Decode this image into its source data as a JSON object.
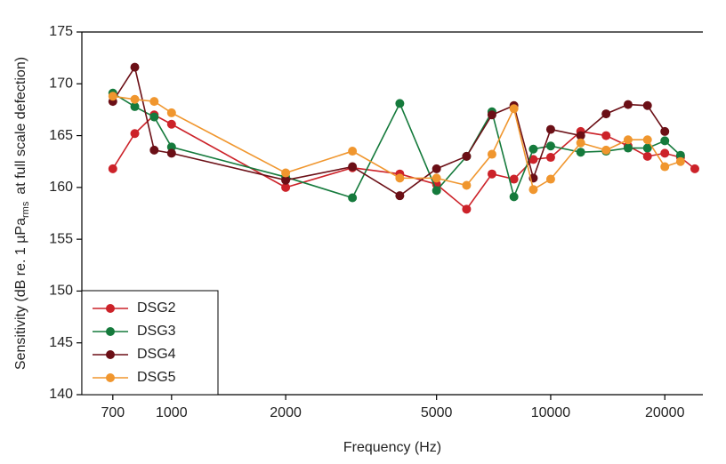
{
  "chart_data": {
    "type": "line",
    "x_label": "Frequency (Hz)",
    "y_label": {
      "text": "Sensitivity (dB re. 1 µPa",
      "subscript": "rms",
      "suffix": "at full scale defection)"
    },
    "x": [
      700,
      800,
      900,
      1000,
      2000,
      3000,
      4000,
      5000,
      6000,
      7000,
      8000,
      9000,
      10000,
      12000,
      14000,
      16000,
      18000,
      20000,
      22000,
      24000
    ],
    "series": [
      {
        "name": "DSG2",
        "color": "#cc2229",
        "values": [
          161.8,
          165.2,
          167.0,
          166.1,
          160.0,
          161.9,
          161.3,
          160.3,
          157.9,
          161.3,
          160.8,
          162.7,
          162.9,
          165.4,
          165.0,
          164.0,
          163.0,
          163.3,
          162.9,
          161.8
        ]
      },
      {
        "name": "DSG3",
        "color": "#157a3c",
        "values": [
          169.1,
          167.8,
          166.8,
          163.9,
          161.0,
          159.0,
          168.1,
          159.7,
          163.0,
          167.3,
          159.1,
          163.7,
          164.0,
          163.4,
          163.5,
          163.8,
          163.8,
          164.5,
          163.1,
          null
        ]
      },
      {
        "name": "DSG4",
        "color": "#6b0f16",
        "values": [
          168.3,
          171.6,
          163.6,
          163.3,
          160.7,
          162.0,
          159.2,
          161.8,
          163.0,
          167.0,
          167.9,
          160.9,
          165.6,
          165.0,
          167.1,
          168.0,
          167.9,
          165.4,
          null,
          null
        ]
      },
      {
        "name": "DSG5",
        "color": "#f0962e",
        "values": [
          168.8,
          168.5,
          168.3,
          167.2,
          161.4,
          163.5,
          160.9,
          160.9,
          160.2,
          163.2,
          167.6,
          159.8,
          160.8,
          164.3,
          163.6,
          164.6,
          164.6,
          162.0,
          162.5,
          null
        ]
      }
    ],
    "xlim": [
      580,
      25200
    ],
    "xscale": "log",
    "xticks": [
      700,
      1000,
      2000,
      5000,
      10000,
      20000
    ],
    "ylim": [
      140,
      175
    ],
    "yticks": [
      140,
      145,
      150,
      155,
      160,
      165,
      170,
      175
    ],
    "legend": "lower left",
    "grid": false
  }
}
